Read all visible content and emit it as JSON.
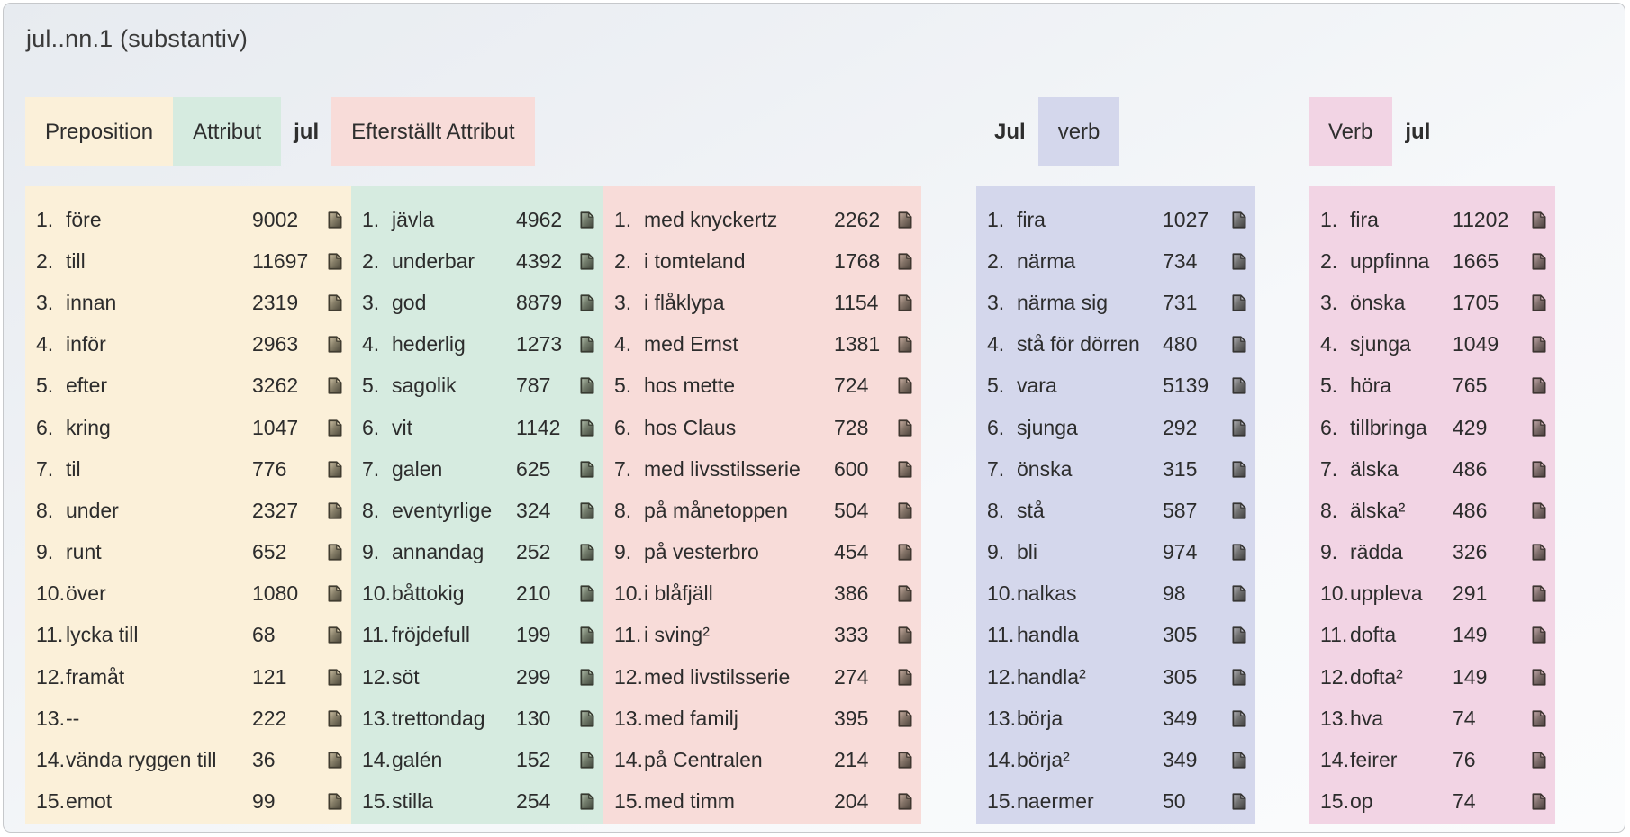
{
  "title": "jul..nn.1 (substantiv)",
  "keyword": "jul",
  "icons": {
    "row_icon": "document-with-folded-corner"
  },
  "colors": {
    "preposition_bg": "#fbf0d9",
    "attribut_bg": "#d6ebe0",
    "efterstallt_attribut_bg": "#f8dcd9",
    "jul_verb_bg": "#d4d7ec",
    "verb_jul_bg": "#f2d4e4"
  },
  "header_groups": [
    {
      "items": [
        {
          "text": "Preposition",
          "bg": "#fbf0d9"
        },
        {
          "text": "Attribut",
          "bg": "#d6ebe0"
        },
        {
          "text": "jul",
          "bold": true
        },
        {
          "text": "Efterställt Attribut",
          "bg": "#f8dcd9"
        }
      ]
    },
    {
      "items": [
        {
          "text": "Jul",
          "bold": true
        },
        {
          "text": "verb",
          "bg": "#d4d7ec"
        }
      ]
    },
    {
      "items": [
        {
          "text": "Verb",
          "bg": "#f2d4e4"
        },
        {
          "text": "jul",
          "bold": true
        }
      ]
    }
  ],
  "columns": [
    {
      "label": "Preposition",
      "bg": "#fbf0d9",
      "items": [
        {
          "rank": "1.",
          "word": "före",
          "count": "9002"
        },
        {
          "rank": "2.",
          "word": "till",
          "count": "11697"
        },
        {
          "rank": "3.",
          "word": "innan",
          "count": "2319"
        },
        {
          "rank": "4.",
          "word": "inför",
          "count": "2963"
        },
        {
          "rank": "5.",
          "word": "efter",
          "count": "3262"
        },
        {
          "rank": "6.",
          "word": "kring",
          "count": "1047"
        },
        {
          "rank": "7.",
          "word": "til",
          "count": "776"
        },
        {
          "rank": "8.",
          "word": "under",
          "count": "2327"
        },
        {
          "rank": "9.",
          "word": "runt",
          "count": "652"
        },
        {
          "rank": "10.",
          "word": "över",
          "count": "1080"
        },
        {
          "rank": "11.",
          "word": "lycka till",
          "count": "68"
        },
        {
          "rank": "12.",
          "word": "framåt",
          "count": "121"
        },
        {
          "rank": "13.",
          "word": "--",
          "count": "222"
        },
        {
          "rank": "14.",
          "word": "vända ryggen till",
          "count": "36"
        },
        {
          "rank": "15.",
          "word": "emot",
          "count": "99"
        }
      ]
    },
    {
      "label": "Attribut",
      "bg": "#d6ebe0",
      "items": [
        {
          "rank": "1.",
          "word": "jävla",
          "count": "4962"
        },
        {
          "rank": "2.",
          "word": "underbar",
          "count": "4392"
        },
        {
          "rank": "3.",
          "word": "god",
          "count": "8879"
        },
        {
          "rank": "4.",
          "word": "hederlig",
          "count": "1273"
        },
        {
          "rank": "5.",
          "word": "sagolik",
          "count": "787"
        },
        {
          "rank": "6.",
          "word": "vit",
          "count": "1142"
        },
        {
          "rank": "7.",
          "word": "galen",
          "count": "625"
        },
        {
          "rank": "8.",
          "word": "eventyrlige",
          "count": "324"
        },
        {
          "rank": "9.",
          "word": "annandag",
          "count": "252"
        },
        {
          "rank": "10.",
          "word": "båttokig",
          "count": "210"
        },
        {
          "rank": "11.",
          "word": "fröjdefull",
          "count": "199"
        },
        {
          "rank": "12.",
          "word": "söt",
          "count": "299"
        },
        {
          "rank": "13.",
          "word": "trettondag",
          "count": "130"
        },
        {
          "rank": "14.",
          "word": "galén",
          "count": "152"
        },
        {
          "rank": "15.",
          "word": "stilla",
          "count": "254"
        }
      ]
    },
    {
      "label": "Efterställt Attribut",
      "bg": "#f8dcd9",
      "items": [
        {
          "rank": "1.",
          "word": "med knyckertz",
          "count": "2262"
        },
        {
          "rank": "2.",
          "word": "i tomteland",
          "count": "1768"
        },
        {
          "rank": "3.",
          "word": "i flåklypa",
          "count": "1154"
        },
        {
          "rank": "4.",
          "word": "med Ernst",
          "count": "1381"
        },
        {
          "rank": "5.",
          "word": "hos mette",
          "count": "724"
        },
        {
          "rank": "6.",
          "word": "hos Claus",
          "count": "728"
        },
        {
          "rank": "7.",
          "word": "med livsstilsserie",
          "count": "600"
        },
        {
          "rank": "8.",
          "word": "på månetoppen",
          "count": "504"
        },
        {
          "rank": "9.",
          "word": "på vesterbro",
          "count": "454"
        },
        {
          "rank": "10.",
          "word": "i blåfjäll",
          "count": "386"
        },
        {
          "rank": "11.",
          "word": "i sving²",
          "count": "333"
        },
        {
          "rank": "12.",
          "word": "med livstilsserie",
          "count": "274"
        },
        {
          "rank": "13.",
          "word": "med familj",
          "count": "395"
        },
        {
          "rank": "14.",
          "word": "på Centralen",
          "count": "214"
        },
        {
          "rank": "15.",
          "word": "med timm",
          "count": "204"
        }
      ]
    },
    {
      "label": "Jul verb",
      "bg": "#d4d7ec",
      "items": [
        {
          "rank": "1.",
          "word": "fira",
          "count": "1027"
        },
        {
          "rank": "2.",
          "word": "närma",
          "count": "734"
        },
        {
          "rank": "3.",
          "word": "närma sig",
          "count": "731"
        },
        {
          "rank": "4.",
          "word": "stå för dörren",
          "count": "480"
        },
        {
          "rank": "5.",
          "word": "vara",
          "count": "5139"
        },
        {
          "rank": "6.",
          "word": "sjunga",
          "count": "292"
        },
        {
          "rank": "7.",
          "word": "önska",
          "count": "315"
        },
        {
          "rank": "8.",
          "word": "stå",
          "count": "587"
        },
        {
          "rank": "9.",
          "word": "bli",
          "count": "974"
        },
        {
          "rank": "10.",
          "word": "nalkas",
          "count": "98"
        },
        {
          "rank": "11.",
          "word": "handla",
          "count": "305"
        },
        {
          "rank": "12.",
          "word": "handla²",
          "count": "305"
        },
        {
          "rank": "13.",
          "word": "börja",
          "count": "349"
        },
        {
          "rank": "14.",
          "word": "börja²",
          "count": "349"
        },
        {
          "rank": "15.",
          "word": "naermer",
          "count": "50"
        }
      ]
    },
    {
      "label": "Verb jul",
      "bg": "#f2d4e4",
      "items": [
        {
          "rank": "1.",
          "word": "fira",
          "count": "11202"
        },
        {
          "rank": "2.",
          "word": "uppfinna",
          "count": "1665"
        },
        {
          "rank": "3.",
          "word": "önska",
          "count": "1705"
        },
        {
          "rank": "4.",
          "word": "sjunga",
          "count": "1049"
        },
        {
          "rank": "5.",
          "word": "höra",
          "count": "765"
        },
        {
          "rank": "6.",
          "word": "tillbringa",
          "count": "429"
        },
        {
          "rank": "7.",
          "word": "älska",
          "count": "486"
        },
        {
          "rank": "8.",
          "word": "älska²",
          "count": "486"
        },
        {
          "rank": "9.",
          "word": "rädda",
          "count": "326"
        },
        {
          "rank": "10.",
          "word": "uppleva",
          "count": "291"
        },
        {
          "rank": "11.",
          "word": "dofta",
          "count": "149"
        },
        {
          "rank": "12.",
          "word": "dofta²",
          "count": "149"
        },
        {
          "rank": "13.",
          "word": "hva",
          "count": "74"
        },
        {
          "rank": "14.",
          "word": "feirer",
          "count": "76"
        },
        {
          "rank": "15.",
          "word": "op",
          "count": "74"
        }
      ]
    }
  ]
}
